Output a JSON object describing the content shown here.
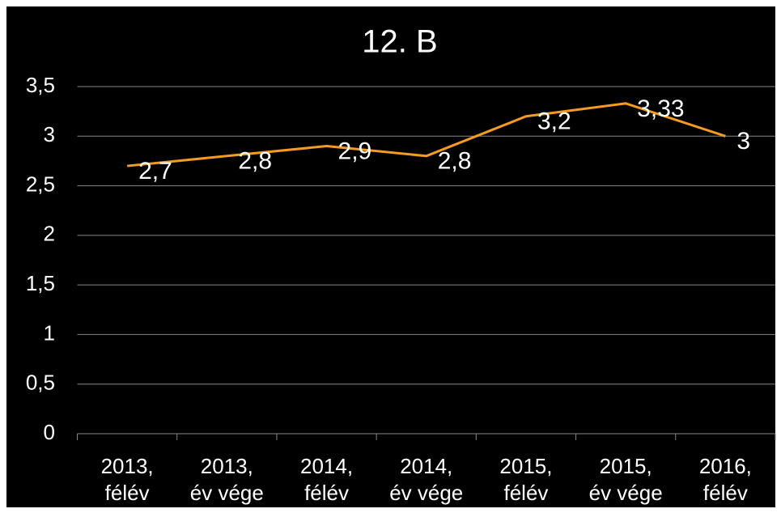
{
  "chart_data": {
    "type": "line",
    "title": "12. B",
    "categories": [
      [
        "2013,",
        "félév"
      ],
      [
        "2013,",
        "év vége"
      ],
      [
        "2014,",
        "félév"
      ],
      [
        "2014,",
        "év vége"
      ],
      [
        "2015,",
        "félév"
      ],
      [
        "2015,",
        "év vége"
      ],
      [
        "2016,",
        "félév"
      ]
    ],
    "values": [
      2.7,
      2.8,
      2.9,
      2.8,
      3.2,
      3.33,
      3
    ],
    "value_labels": [
      "2,7",
      "2,8",
      "2,9",
      "2,8",
      "3,2",
      "3,33",
      "3"
    ],
    "color": "#f59a23",
    "ylim": [
      0,
      3.5
    ],
    "yticks": [
      0,
      {
        "value": 0.5,
        "label": "0,5"
      },
      1,
      {
        "value": 1.5,
        "label": "1,5"
      },
      2,
      {
        "value": 2.5,
        "label": "2,5"
      },
      3,
      {
        "value": 3.5,
        "label": "3,5"
      }
    ],
    "grid": true
  }
}
